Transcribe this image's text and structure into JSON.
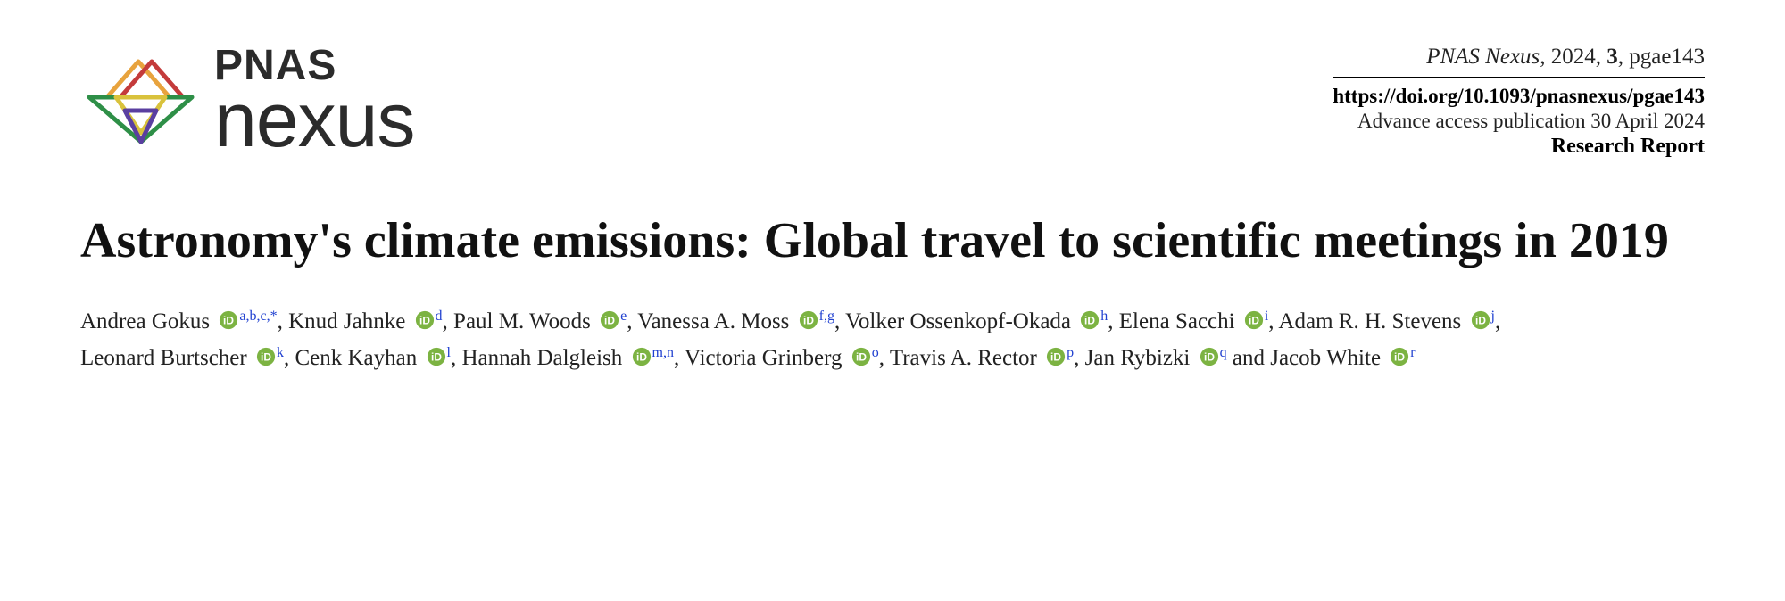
{
  "logo": {
    "pnas": "PNAS",
    "nexus": "nexus"
  },
  "meta": {
    "journal": "PNAS Nexus",
    "year": "2024",
    "volume": "3",
    "article_id": "pgae143",
    "doi": "https://doi.org/10.1093/pnasnexus/pgae143",
    "access": "Advance access publication 30 April 2024",
    "type": "Research Report"
  },
  "title": "Astronomy's climate emissions: Global travel to scientific meetings in 2019",
  "authors": [
    {
      "name": "Andrea Gokus",
      "affil": "a,b,c,*"
    },
    {
      "name": "Knud Jahnke",
      "affil": "d"
    },
    {
      "name": "Paul M. Woods",
      "affil": "e"
    },
    {
      "name": "Vanessa A. Moss",
      "affil": "f,g"
    },
    {
      "name": "Volker Ossenkopf-Okada",
      "affil": "h"
    },
    {
      "name": "Elena Sacchi",
      "affil": "i"
    },
    {
      "name": "Adam R. H. Stevens",
      "affil": "j"
    },
    {
      "name": "Leonard Burtscher",
      "affil": "k"
    },
    {
      "name": "Cenk Kayhan",
      "affil": "l"
    },
    {
      "name": "Hannah Dalgleish",
      "affil": "m,n"
    },
    {
      "name": "Victoria Grinberg",
      "affil": "o"
    },
    {
      "name": "Travis A. Rector",
      "affil": "p"
    },
    {
      "name": "Jan Rybizki",
      "affil": "q"
    },
    {
      "name": "Jacob White",
      "affil": "r"
    }
  ],
  "colors": {
    "orcid_green": "#7cb342",
    "affil_link": "#2040d0",
    "text": "#222222",
    "logo_text": "#2b2b2b"
  }
}
